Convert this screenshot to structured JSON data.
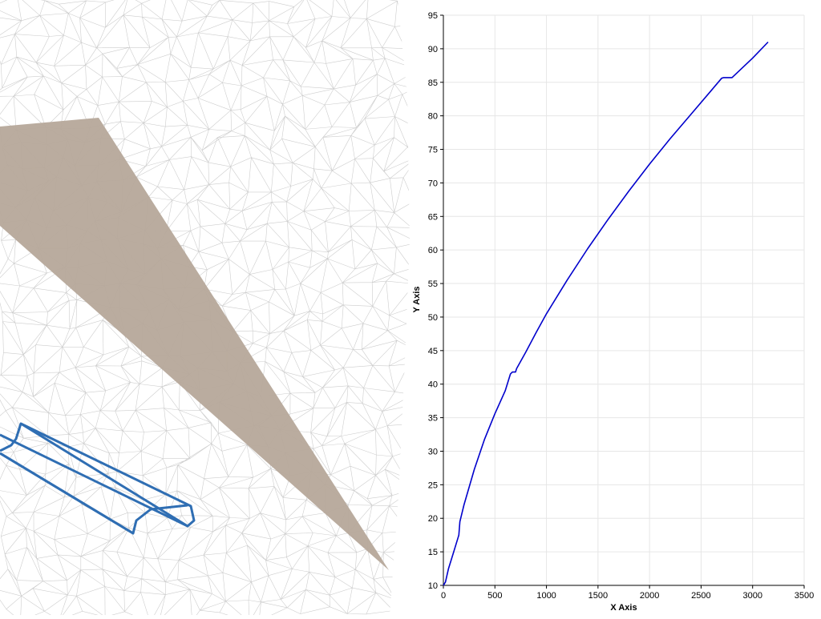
{
  "scene": {
    "mesh_color": "#cdcdcd",
    "wedge_color": "#b6a89a",
    "outline_color": "#2f6eb3"
  },
  "chart_data": {
    "type": "line",
    "xlabel": "X Axis",
    "ylabel": "Y Axis",
    "xlim": [
      0,
      3500
    ],
    "ylim": [
      10,
      95
    ],
    "x_ticks": [
      0,
      500,
      1000,
      1500,
      2000,
      2500,
      3000,
      3500
    ],
    "y_ticks": [
      10,
      15,
      20,
      25,
      30,
      35,
      40,
      45,
      50,
      55,
      60,
      65,
      70,
      75,
      80,
      85,
      90,
      95
    ],
    "grid": true,
    "series": [
      {
        "color": "#0000cc",
        "x": [
          0,
          20,
          50,
          100,
          150,
          160,
          200,
          300,
          400,
          500,
          600,
          650,
          670,
          700,
          710,
          800,
          900,
          1000,
          1200,
          1400,
          1600,
          1800,
          2000,
          2200,
          2400,
          2600,
          2700,
          2720,
          2780,
          2800,
          3000,
          3150
        ],
        "y": [
          10,
          10.5,
          12.5,
          15,
          17.5,
          19.5,
          22,
          27.3,
          31.8,
          35.6,
          39,
          41.5,
          41.8,
          41.8,
          42.3,
          44.8,
          47.7,
          50.5,
          55.5,
          60.2,
          64.6,
          68.8,
          72.8,
          76.6,
          80.2,
          83.8,
          85.6,
          85.7,
          85.7,
          85.7,
          88.6,
          91
        ]
      }
    ]
  }
}
